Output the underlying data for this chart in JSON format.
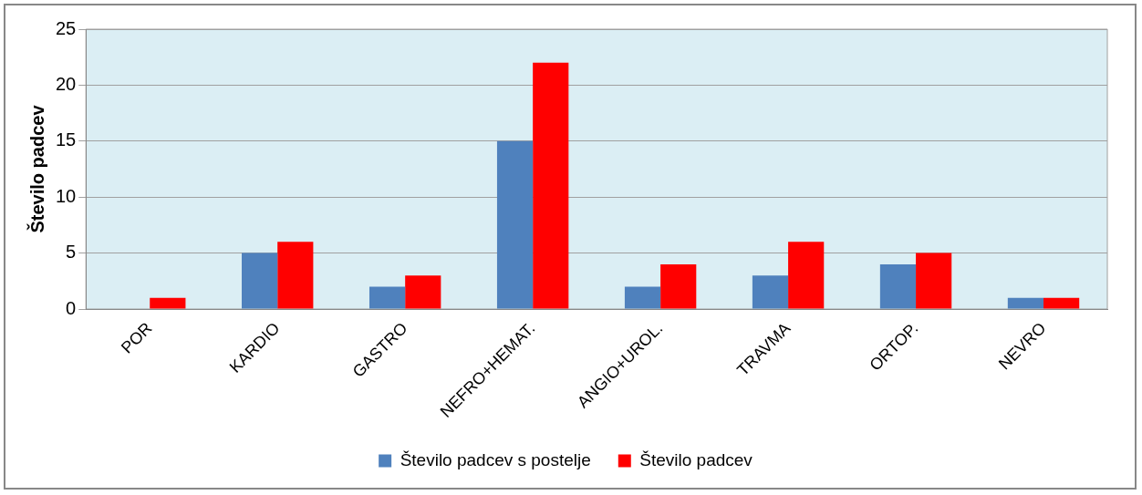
{
  "chart_data": {
    "type": "bar",
    "ylabel": "Število padcev",
    "categories": [
      "POR",
      "KARDIO",
      "GASTRO",
      "NEFRO+HEMAT.",
      "ANGIO+UROL.",
      "TRAVMA",
      "ORTOP.",
      "NEVRO"
    ],
    "series": [
      {
        "name": "Število padcev s postelje",
        "color": "#4f81bd",
        "values": [
          0,
          5,
          2,
          15,
          2,
          3,
          4,
          1
        ]
      },
      {
        "name": "Število padcev",
        "color": "#ff0000",
        "values": [
          1,
          6,
          3,
          22,
          4,
          6,
          5,
          1
        ]
      }
    ],
    "ylim": [
      0,
      25
    ],
    "yticks": [
      0,
      5,
      10,
      15,
      20,
      25
    ],
    "grid": "y",
    "legend": "bottom"
  }
}
